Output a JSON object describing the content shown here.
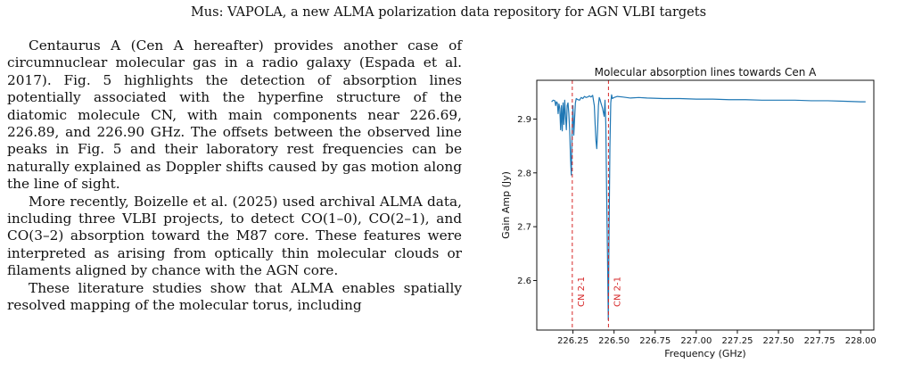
{
  "header": {
    "running_title": "Mus: VAPOLA, a new ALMA polarization data repository for AGN VLBI targets"
  },
  "body": {
    "paragraphs": [
      "Centaurus A (Cen A hereafter) provides another case of circumnuclear molecular gas in a radio galaxy (Espada et al. 2017). Fig. 5 highlights the detection of absorption lines potentially associated with the hyperfine structure of the diatomic molecule CN, with main components near 226.69, 226.89, and 226.90 GHz. The offsets between the observed line peaks in Fig. 5 and their laboratory rest frequencies can be naturally explained as Doppler shifts caused by gas motion along the line of sight.",
      "More recently, Boizelle et al. (2025) used archival ALMA data, including three VLBI projects, to detect CO(1–0), CO(2–1), and CO(3–2) absorption toward the M87 core. These features were interpreted as arising from optically thin molecular clouds or filaments aligned by chance with the AGN core.",
      "These literature studies show that ALMA enables spatially resolved mapping of the molecular torus, including"
    ]
  },
  "chart_data": {
    "type": "line",
    "title": "Molecular absorption lines towards Cen A",
    "xlabel": "Frequency (GHz)",
    "ylabel": "Gain Amp (Jy)",
    "xlim": [
      226.03,
      228.08
    ],
    "ylim": [
      2.508,
      2.972
    ],
    "xticks": [
      "226.25",
      "226.50",
      "226.75",
      "227.00",
      "227.25",
      "227.50",
      "227.75",
      "228.00"
    ],
    "yticks": [
      "2.6",
      "2.7",
      "2.8",
      "2.9"
    ],
    "grid": false,
    "series": [
      {
        "color": "#1f77b4",
        "x": [
          226.12,
          226.13,
          226.14,
          226.145,
          226.15,
          226.155,
          226.16,
          226.165,
          226.17,
          226.175,
          226.18,
          226.185,
          226.19,
          226.195,
          226.2,
          226.205,
          226.21,
          226.215,
          226.22,
          226.225,
          226.23,
          226.235,
          226.24,
          226.245,
          226.25,
          226.255,
          226.26,
          226.265,
          226.27,
          226.28,
          226.29,
          226.3,
          226.31,
          226.32,
          226.33,
          226.34,
          226.35,
          226.36,
          226.37,
          226.38,
          226.385,
          226.39,
          226.395,
          226.4,
          226.405,
          226.41,
          226.415,
          226.42,
          226.43,
          226.44,
          226.445,
          226.45,
          226.455,
          226.46,
          226.465,
          226.47,
          226.475,
          226.48,
          226.485,
          226.49,
          226.5,
          226.51,
          226.52,
          226.55,
          226.6,
          226.65,
          226.7,
          226.8,
          226.9,
          227.0,
          227.1,
          227.2,
          227.3,
          227.4,
          227.5,
          227.6,
          227.7,
          227.8,
          227.9,
          228.0,
          228.03
        ],
        "y": [
          2.932,
          2.935,
          2.934,
          2.925,
          2.932,
          2.93,
          2.91,
          2.928,
          2.92,
          2.88,
          2.925,
          2.878,
          2.93,
          2.89,
          2.935,
          2.905,
          2.88,
          2.925,
          2.93,
          2.91,
          2.88,
          2.83,
          2.796,
          2.88,
          2.925,
          2.87,
          2.9,
          2.93,
          2.938,
          2.936,
          2.935,
          2.94,
          2.938,
          2.942,
          2.94,
          2.941,
          2.943,
          2.941,
          2.944,
          2.925,
          2.89,
          2.86,
          2.845,
          2.88,
          2.925,
          2.94,
          2.936,
          2.93,
          2.92,
          2.905,
          2.935,
          2.89,
          2.76,
          2.65,
          2.527,
          2.7,
          2.85,
          2.93,
          2.945,
          2.938,
          2.94,
          2.941,
          2.942,
          2.941,
          2.939,
          2.94,
          2.939,
          2.938,
          2.938,
          2.937,
          2.937,
          2.936,
          2.936,
          2.935,
          2.935,
          2.935,
          2.934,
          2.934,
          2.933,
          2.932,
          2.932
        ]
      }
    ],
    "annotations": [
      {
        "type": "vline",
        "x": 226.246,
        "color": "#d62728",
        "style": "dashed",
        "label": "CN 2-1"
      },
      {
        "type": "vline",
        "x": 226.466,
        "color": "#d62728",
        "style": "dashed",
        "label": "CN 2-1"
      }
    ]
  }
}
